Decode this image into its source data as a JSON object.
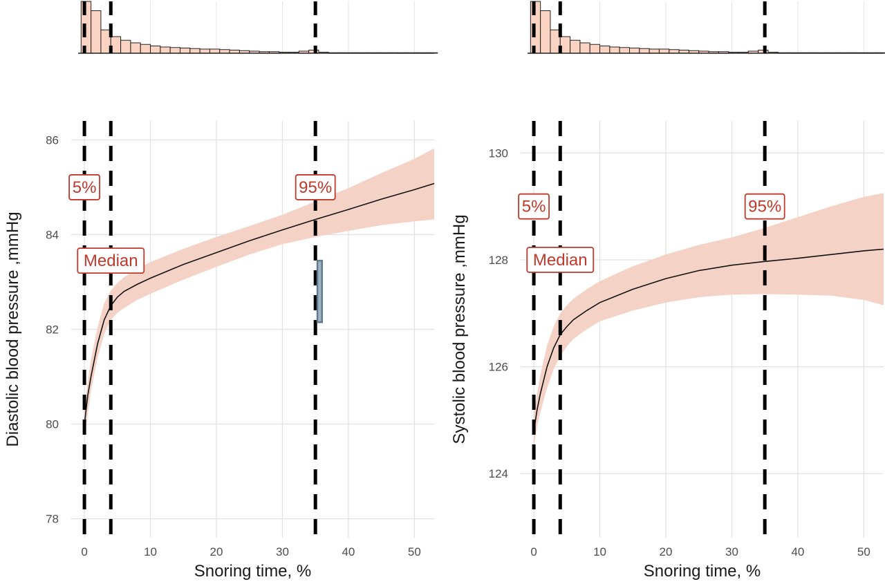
{
  "chart_data": [
    {
      "type": "line",
      "ylabel": "Diastolic blood pressure ,mmHg",
      "xlabel": "Snoring time, %",
      "xlim": [
        -2,
        53
      ],
      "ylim": [
        77.6,
        86.4
      ],
      "x_ticks": [
        0,
        10,
        20,
        30,
        40,
        50
      ],
      "y_ticks": [
        78,
        80,
        82,
        84,
        86
      ],
      "grid": true,
      "colors": {
        "ribbon": "#f5d2c6",
        "line": "#111111",
        "annotation": "#c0392b",
        "vline": "#000000",
        "hist_fill": "#fbd3c2",
        "marker": "#5f7a8c"
      },
      "fit": {
        "x": [
          0,
          0.5,
          1,
          2,
          3,
          4,
          5,
          6,
          8,
          10,
          15,
          20,
          25,
          30,
          35,
          40,
          45,
          50,
          53
        ],
        "y": [
          80.0,
          80.6,
          81.0,
          81.7,
          82.2,
          82.5,
          82.68,
          82.8,
          82.95,
          83.08,
          83.37,
          83.62,
          83.87,
          84.1,
          84.32,
          84.53,
          84.75,
          84.95,
          85.08
        ],
        "lower": [
          79.7,
          80.2,
          80.7,
          81.4,
          81.9,
          82.2,
          82.35,
          82.45,
          82.62,
          82.75,
          83.05,
          83.32,
          83.58,
          83.8,
          83.95,
          84.08,
          84.2,
          84.28,
          84.32
        ],
        "upper": [
          80.3,
          80.9,
          81.35,
          82.05,
          82.55,
          82.82,
          82.98,
          83.1,
          83.28,
          83.42,
          83.7,
          83.95,
          84.18,
          84.42,
          84.7,
          84.98,
          85.3,
          85.6,
          85.82
        ]
      },
      "percentile_lines": [
        0,
        4,
        35
      ],
      "annotations": [
        {
          "text": "5%",
          "x": 0,
          "y": 85.0
        },
        {
          "text": "Median",
          "x": 4,
          "y": 83.45
        },
        {
          "text": "95%",
          "x": 35,
          "y": 85.0
        }
      ],
      "marker_rect": {
        "x0": 35.3,
        "x1": 36.0,
        "y0": 82.15,
        "y1": 83.45
      },
      "histogram": {
        "bin_starts": [
          -0.5,
          1,
          2.5,
          4,
          5.5,
          7,
          8.5,
          10,
          11.5,
          13,
          14.5,
          16,
          17.5,
          19,
          20.5,
          22,
          23.5,
          25,
          26.5,
          28,
          29.5,
          31,
          32.5,
          34,
          35.5,
          37,
          38.5,
          40,
          41.5,
          43,
          44.5,
          46,
          47.5,
          49,
          50.5,
          52
        ],
        "counts": [
          100,
          82,
          45,
          32,
          25,
          20,
          17,
          14,
          12,
          11,
          10,
          9,
          8,
          8,
          7,
          6,
          5,
          4,
          3,
          3,
          2,
          2,
          4,
          6,
          2,
          1,
          1,
          1,
          1,
          1,
          1,
          1,
          1,
          1,
          1,
          1
        ]
      }
    },
    {
      "type": "line",
      "ylabel": "Systolic blood pressure ,mmHg",
      "xlabel": "Snoring time, %",
      "xlim": [
        -2,
        53
      ],
      "ylim": [
        122.8,
        130.6
      ],
      "x_ticks": [
        0,
        10,
        20,
        30,
        40,
        50
      ],
      "y_ticks": [
        124,
        126,
        128,
        130
      ],
      "grid": true,
      "colors": {
        "ribbon": "#f5d2c6",
        "line": "#111111",
        "annotation": "#c0392b",
        "vline": "#000000",
        "hist_fill": "#fbd3c2"
      },
      "fit": {
        "x": [
          0,
          0.5,
          1,
          2,
          3,
          4,
          5,
          6,
          8,
          10,
          15,
          20,
          25,
          30,
          35,
          40,
          45,
          50,
          53
        ],
        "y": [
          124.8,
          125.2,
          125.5,
          126.0,
          126.35,
          126.6,
          126.75,
          126.88,
          127.05,
          127.2,
          127.45,
          127.65,
          127.8,
          127.9,
          127.97,
          128.03,
          128.1,
          128.17,
          128.2
        ],
        "lower": [
          124.5,
          124.9,
          125.15,
          125.6,
          125.95,
          126.2,
          126.38,
          126.52,
          126.7,
          126.85,
          127.05,
          127.2,
          127.3,
          127.35,
          127.36,
          127.35,
          127.33,
          127.25,
          127.15
        ],
        "upper": [
          125.1,
          125.5,
          125.85,
          126.4,
          126.75,
          127.0,
          127.15,
          127.27,
          127.45,
          127.6,
          127.88,
          128.1,
          128.28,
          128.42,
          128.6,
          128.8,
          129.0,
          129.18,
          129.25
        ]
      },
      "percentile_lines": [
        0,
        4,
        35
      ],
      "annotations": [
        {
          "text": "5%",
          "x": 0,
          "y": 129.0
        },
        {
          "text": "Median",
          "x": 4,
          "y": 128.0
        },
        {
          "text": "95%",
          "x": 35,
          "y": 129.0
        }
      ],
      "histogram": {
        "bin_starts": [
          -0.5,
          1,
          2.5,
          4,
          5.5,
          7,
          8.5,
          10,
          11.5,
          13,
          14.5,
          16,
          17.5,
          19,
          20.5,
          22,
          23.5,
          25,
          26.5,
          28,
          29.5,
          31,
          32.5,
          34,
          35.5,
          37,
          38.5,
          40,
          41.5,
          43,
          44.5,
          46,
          47.5,
          49,
          50.5,
          52
        ],
        "counts": [
          100,
          82,
          45,
          32,
          25,
          20,
          17,
          14,
          12,
          11,
          10,
          9,
          8,
          8,
          7,
          6,
          5,
          4,
          3,
          3,
          2,
          2,
          4,
          6,
          2,
          1,
          1,
          1,
          1,
          1,
          1,
          1,
          1,
          1,
          1,
          1
        ]
      }
    }
  ]
}
